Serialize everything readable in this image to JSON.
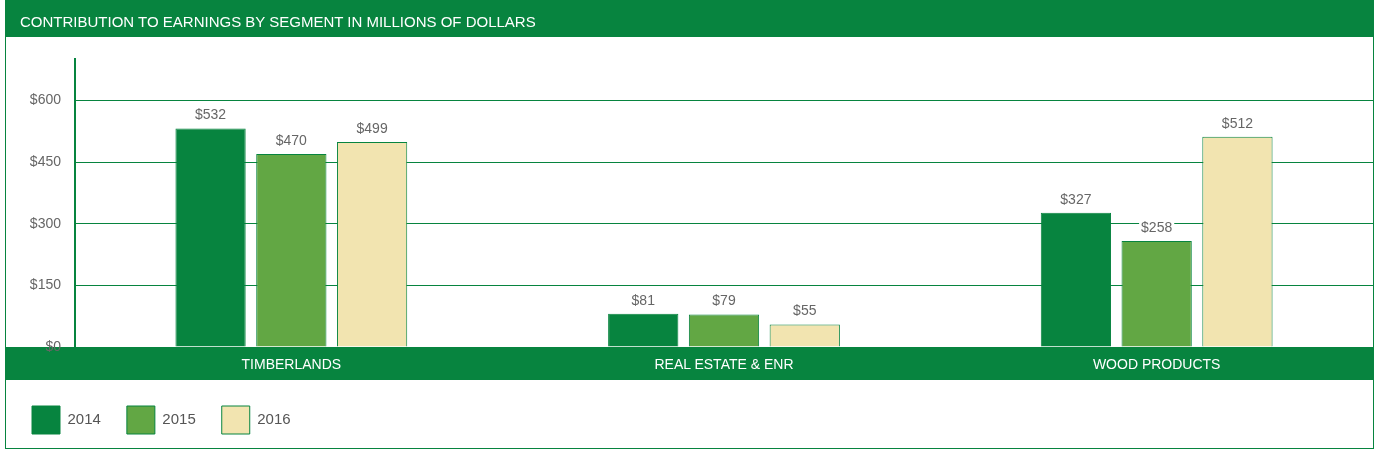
{
  "chart_data": {
    "type": "bar",
    "title": "CONTRIBUTION TO EARNINGS BY SEGMENT IN MILLIONS OF DOLLARS",
    "categories": [
      "TIMBERLANDS",
      "REAL ESTATE & ENR",
      "WOOD PRODUCTS"
    ],
    "series": [
      {
        "name": "2014",
        "color": "#07843f",
        "values": [
          532,
          81,
          327
        ],
        "value_labels": [
          "$532",
          "$81",
          "$327"
        ]
      },
      {
        "name": "2015",
        "color": "#62a744",
        "values": [
          470,
          79,
          258
        ],
        "value_labels": [
          "$470",
          "$79",
          "$258"
        ]
      },
      {
        "name": "2016",
        "color": "#f2e4b0",
        "values": [
          499,
          55,
          512
        ],
        "value_labels": [
          "$499",
          "$55",
          "$512"
        ]
      }
    ],
    "ylim": [
      0,
      700
    ],
    "yticks": [
      {
        "value": 0,
        "label": "$0"
      },
      {
        "value": 150,
        "label": "$150"
      },
      {
        "value": 300,
        "label": "$300"
      },
      {
        "value": 450,
        "label": "$450"
      },
      {
        "value": 600,
        "label": "$600"
      }
    ],
    "grid": "y",
    "legend": "bottom left"
  }
}
